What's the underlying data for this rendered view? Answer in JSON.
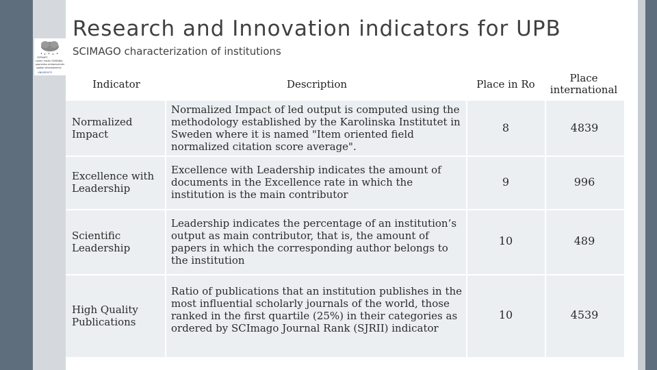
{
  "slide": {
    "title": "Research and Innovation indicators for UPB",
    "subtitle": "SCIMAGO characterization of institutions"
  },
  "logo": {
    "lines": [
      "CEPHAPC",
      "Lorem institu ROMANIA",
      "paprentus anteprovinder",
      "spatial developments",
      "UNIVERSITY"
    ]
  },
  "table": {
    "headers": {
      "indicator": "Indicator",
      "description": "Description",
      "place_ro": "Place in Ro",
      "place_int": "Place international"
    },
    "rows": [
      {
        "indicator": "Normalized Impact",
        "description": "Normalized Impact of led output is computed using the methodology established by the Karolinska Institutet in Sweden where it is named \"Item oriented field normalized citation score average\".",
        "place_ro": "8",
        "place_int": "4839"
      },
      {
        "indicator": "Excellence with Leadership",
        "description": "Excellence with Leadership indicates the amount of documents in the Excellence rate in which the institution is the main contributor",
        "place_ro": "9",
        "place_int": "996"
      },
      {
        "indicator": "Scientific Leadership",
        "description": "Leadership indicates the percentage of an institution’s output as main contributor, that is, the amount of papers in which the corresponding author belongs to the institution",
        "place_ro": "10",
        "place_int": "489"
      },
      {
        "indicator": "High Quality Publications",
        "description": "Ratio of publications that an institution publishes in the most influential scholarly journals of the world, those ranked in the first quartile (25%) in their categories as ordered by SCImago Journal Rank (SJRII) indicator",
        "place_ro": "10",
        "place_int": "4539"
      }
    ]
  }
}
